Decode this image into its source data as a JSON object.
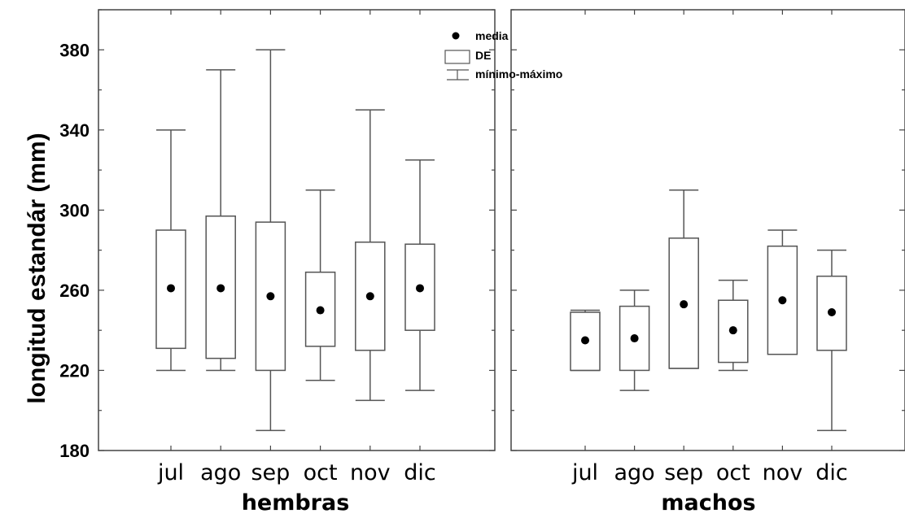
{
  "chart_data": {
    "type": "boxplot",
    "ylabel": "longitud estandár (mm)",
    "ylim": [
      180,
      400
    ],
    "yticks": [
      180,
      220,
      260,
      300,
      340,
      380
    ],
    "legend": {
      "placement": "top-center",
      "items": [
        "media",
        "DE",
        "mínimo-máximo"
      ]
    },
    "panels": [
      {
        "name": "hembras",
        "categories": [
          "jul",
          "ago",
          "sep",
          "oct",
          "nov",
          "dic"
        ],
        "mean": [
          261,
          261,
          257,
          250,
          257,
          261
        ],
        "box_low": [
          231,
          226,
          220,
          232,
          230,
          240
        ],
        "box_high": [
          290,
          297,
          294,
          269,
          284,
          283
        ],
        "min": [
          220,
          220,
          190,
          215,
          205,
          210
        ],
        "max": [
          340,
          370,
          380,
          310,
          350,
          325
        ]
      },
      {
        "name": "machos",
        "categories": [
          "jul",
          "ago",
          "sep",
          "oct",
          "nov",
          "dic"
        ],
        "mean": [
          235,
          236,
          253,
          240,
          255,
          249
        ],
        "box_low": [
          220,
          220,
          221,
          224,
          228,
          230
        ],
        "box_high": [
          249,
          252,
          286,
          255,
          282,
          267
        ],
        "min": [
          220,
          210,
          221,
          220,
          228,
          190
        ],
        "max": [
          250,
          260,
          310,
          265,
          290,
          280
        ]
      }
    ]
  }
}
